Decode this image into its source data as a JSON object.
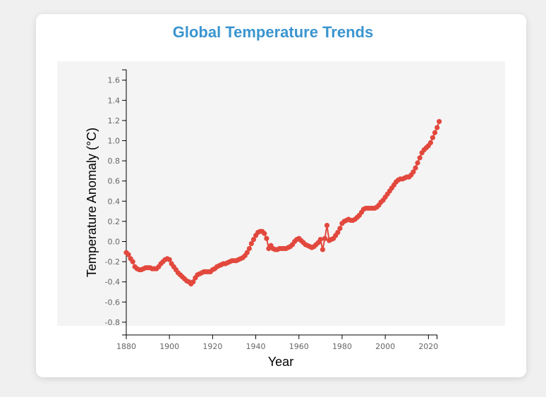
{
  "chart_data": {
    "type": "line",
    "title": "Global Temperature Trends",
    "xlabel": "Year",
    "ylabel": "Temperature Anomaly (°C)",
    "xlim": [
      1880,
      2023
    ],
    "ylim": [
      -0.9,
      1.7
    ],
    "x_ticks": [
      1880,
      1900,
      1920,
      1940,
      1960,
      1980,
      2000,
      2020
    ],
    "y_ticks": [
      -0.8,
      -0.6,
      -0.4,
      -0.2,
      0.0,
      0.2,
      0.4,
      0.6,
      0.8,
      1.0,
      1.2,
      1.4,
      1.6
    ],
    "grid": false,
    "colors": {
      "series": "#e2483d",
      "title": "#3a95cf",
      "plot_bg": "#f4f4f4"
    },
    "series": [
      {
        "name": "",
        "points": [
          [
            1880,
            -0.11
          ],
          [
            1881,
            -0.13
          ],
          [
            1882,
            -0.17
          ],
          [
            1883,
            -0.2
          ],
          [
            1884,
            -0.25
          ],
          [
            1885,
            -0.27
          ],
          [
            1886,
            -0.28
          ],
          [
            1887,
            -0.28
          ],
          [
            1888,
            -0.27
          ],
          [
            1889,
            -0.26
          ],
          [
            1890,
            -0.26
          ],
          [
            1891,
            -0.26
          ],
          [
            1892,
            -0.27
          ],
          [
            1893,
            -0.27
          ],
          [
            1894,
            -0.27
          ],
          [
            1895,
            -0.25
          ],
          [
            1896,
            -0.22
          ],
          [
            1897,
            -0.2
          ],
          [
            1898,
            -0.18
          ],
          [
            1899,
            -0.17
          ],
          [
            1900,
            -0.18
          ],
          [
            1901,
            -0.22
          ],
          [
            1902,
            -0.25
          ],
          [
            1903,
            -0.28
          ],
          [
            1904,
            -0.31
          ],
          [
            1905,
            -0.33
          ],
          [
            1906,
            -0.35
          ],
          [
            1907,
            -0.37
          ],
          [
            1908,
            -0.39
          ],
          [
            1909,
            -0.4
          ],
          [
            1910,
            -0.42
          ],
          [
            1911,
            -0.4
          ],
          [
            1912,
            -0.36
          ],
          [
            1913,
            -0.33
          ],
          [
            1914,
            -0.32
          ],
          [
            1915,
            -0.31
          ],
          [
            1916,
            -0.3
          ],
          [
            1917,
            -0.3
          ],
          [
            1918,
            -0.3
          ],
          [
            1919,
            -0.3
          ],
          [
            1920,
            -0.28
          ],
          [
            1921,
            -0.27
          ],
          [
            1922,
            -0.25
          ],
          [
            1923,
            -0.24
          ],
          [
            1924,
            -0.23
          ],
          [
            1925,
            -0.22
          ],
          [
            1926,
            -0.22
          ],
          [
            1927,
            -0.21
          ],
          [
            1928,
            -0.2
          ],
          [
            1929,
            -0.19
          ],
          [
            1930,
            -0.19
          ],
          [
            1931,
            -0.19
          ],
          [
            1932,
            -0.18
          ],
          [
            1933,
            -0.17
          ],
          [
            1934,
            -0.16
          ],
          [
            1935,
            -0.14
          ],
          [
            1936,
            -0.11
          ],
          [
            1937,
            -0.07
          ],
          [
            1938,
            -0.02
          ],
          [
            1939,
            0.02
          ],
          [
            1940,
            0.06
          ],
          [
            1941,
            0.09
          ],
          [
            1942,
            0.1
          ],
          [
            1943,
            0.1
          ],
          [
            1944,
            0.08
          ],
          [
            1945,
            0.03
          ],
          [
            1946,
            -0.07
          ],
          [
            1947,
            -0.04
          ],
          [
            1948,
            -0.07
          ],
          [
            1949,
            -0.08
          ],
          [
            1950,
            -0.08
          ],
          [
            1951,
            -0.07
          ],
          [
            1952,
            -0.07
          ],
          [
            1953,
            -0.07
          ],
          [
            1954,
            -0.07
          ],
          [
            1955,
            -0.06
          ],
          [
            1956,
            -0.05
          ],
          [
            1957,
            -0.03
          ],
          [
            1958,
            0.0
          ],
          [
            1959,
            0.02
          ],
          [
            1960,
            0.03
          ],
          [
            1961,
            0.01
          ],
          [
            1962,
            -0.01
          ],
          [
            1963,
            -0.03
          ],
          [
            1964,
            -0.04
          ],
          [
            1965,
            -0.05
          ],
          [
            1966,
            -0.06
          ],
          [
            1967,
            -0.05
          ],
          [
            1968,
            -0.03
          ],
          [
            1969,
            -0.01
          ],
          [
            1970,
            0.02
          ],
          [
            1971,
            -0.08
          ],
          [
            1972,
            0.03
          ],
          [
            1973,
            0.16
          ],
          [
            1974,
            0.01
          ],
          [
            1975,
            0.02
          ],
          [
            1976,
            0.03
          ],
          [
            1977,
            0.06
          ],
          [
            1978,
            0.09
          ],
          [
            1979,
            0.13
          ],
          [
            1980,
            0.18
          ],
          [
            1981,
            0.2
          ],
          [
            1982,
            0.21
          ],
          [
            1983,
            0.22
          ],
          [
            1984,
            0.21
          ],
          [
            1985,
            0.21
          ],
          [
            1986,
            0.22
          ],
          [
            1987,
            0.24
          ],
          [
            1988,
            0.26
          ],
          [
            1989,
            0.29
          ],
          [
            1990,
            0.32
          ],
          [
            1991,
            0.33
          ],
          [
            1992,
            0.33
          ],
          [
            1993,
            0.33
          ],
          [
            1994,
            0.33
          ],
          [
            1995,
            0.33
          ],
          [
            1996,
            0.34
          ],
          [
            1997,
            0.36
          ],
          [
            1998,
            0.39
          ],
          [
            1999,
            0.41
          ],
          [
            2000,
            0.44
          ],
          [
            2001,
            0.47
          ],
          [
            2002,
            0.5
          ],
          [
            2003,
            0.53
          ],
          [
            2004,
            0.56
          ],
          [
            2005,
            0.59
          ],
          [
            2006,
            0.61
          ],
          [
            2007,
            0.62
          ],
          [
            2008,
            0.62
          ],
          [
            2009,
            0.63
          ],
          [
            2010,
            0.64
          ],
          [
            2011,
            0.64
          ],
          [
            2012,
            0.66
          ],
          [
            2013,
            0.69
          ],
          [
            2014,
            0.73
          ],
          [
            2015,
            0.78
          ],
          [
            2016,
            0.83
          ],
          [
            2017,
            0.88
          ],
          [
            2018,
            0.91
          ],
          [
            2019,
            0.93
          ],
          [
            2020,
            0.95
          ],
          [
            2021,
            0.98
          ],
          [
            2022,
            1.03
          ],
          [
            2023,
            1.08
          ],
          [
            2024,
            1.13
          ],
          [
            2025,
            1.19
          ]
        ]
      }
    ]
  }
}
